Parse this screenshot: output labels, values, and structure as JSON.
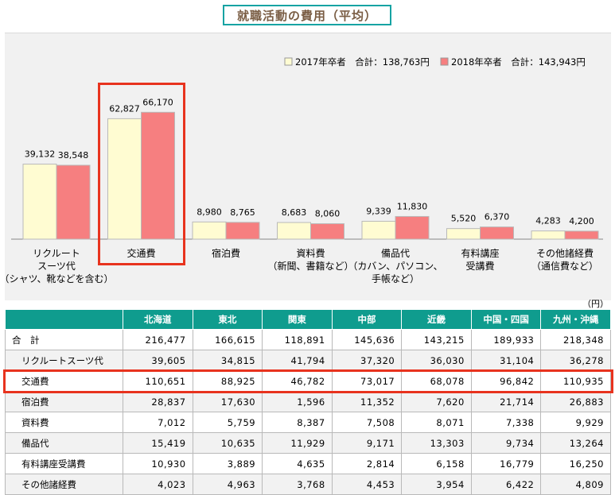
{
  "title": "就職活動の費用（平均）",
  "chart_data": {
    "type": "bar",
    "categories": [
      [
        "リクルート",
        "スーツ代",
        "（シャツ、靴などを含む）"
      ],
      [
        "交通費"
      ],
      [
        "宿泊費"
      ],
      [
        "資料費",
        "（新聞、書籍など）"
      ],
      [
        "備品代",
        "（カバン、パソコン、",
        "手帳など）"
      ],
      [
        "有料講座",
        "受講費"
      ],
      [
        "その他諸経費",
        "（通信費など）"
      ]
    ],
    "series": [
      {
        "name": "2017年卒者　合計：138,763円",
        "color": "#fffcd2",
        "values": [
          39132,
          62827,
          8980,
          8683,
          9339,
          5520,
          4283
        ],
        "labels": [
          "39,132",
          "62,827",
          "8,980",
          "8,683",
          "9,339",
          "5,520",
          "4,283"
        ]
      },
      {
        "name": "2018年卒者　合計：143,943円",
        "color": "#f67f80",
        "values": [
          38548,
          66170,
          8765,
          8060,
          11830,
          6370,
          4200
        ],
        "labels": [
          "38,548",
          "66,170",
          "8,765",
          "8,060",
          "11,830",
          "6,370",
          "4,200"
        ]
      }
    ],
    "ylim": [
      0,
      75000
    ],
    "highlight_category": 1,
    "legend_position": "top-right",
    "grid": false
  },
  "table": {
    "unit": "（円）",
    "columns": [
      "",
      "北海道",
      "東北",
      "関東",
      "中部",
      "近畿",
      "中国・四国",
      "九州・沖縄"
    ],
    "rows": [
      {
        "label": "合　計",
        "values": [
          "216,477",
          "166,615",
          "118,891",
          "145,636",
          "143,215",
          "189,933",
          "218,348"
        ]
      },
      {
        "label": "リクルートスーツ代",
        "values": [
          "39,605",
          "34,815",
          "41,794",
          "37,320",
          "36,030",
          "31,104",
          "36,278"
        ]
      },
      {
        "label": "交通費",
        "values": [
          "110,651",
          "88,925",
          "46,782",
          "73,017",
          "68,078",
          "96,842",
          "110,935"
        ]
      },
      {
        "label": "宿泊費",
        "values": [
          "28,837",
          "17,630",
          "1,596",
          "11,352",
          "7,620",
          "21,714",
          "26,883"
        ]
      },
      {
        "label": "資料費",
        "values": [
          "7,012",
          "5,759",
          "8,387",
          "7,508",
          "8,071",
          "7,338",
          "9,929"
        ]
      },
      {
        "label": "備品代",
        "values": [
          "15,419",
          "10,635",
          "11,929",
          "9,171",
          "13,303",
          "9,734",
          "13,264"
        ]
      },
      {
        "label": "有料講座受講費",
        "values": [
          "10,930",
          "3,889",
          "4,635",
          "2,814",
          "6,158",
          "16,779",
          "16,250"
        ]
      },
      {
        "label": "その他諸経費",
        "values": [
          "4,023",
          "4,963",
          "3,768",
          "4,453",
          "3,954",
          "6,422",
          "4,809"
        ]
      }
    ],
    "highlight_row": 2
  }
}
